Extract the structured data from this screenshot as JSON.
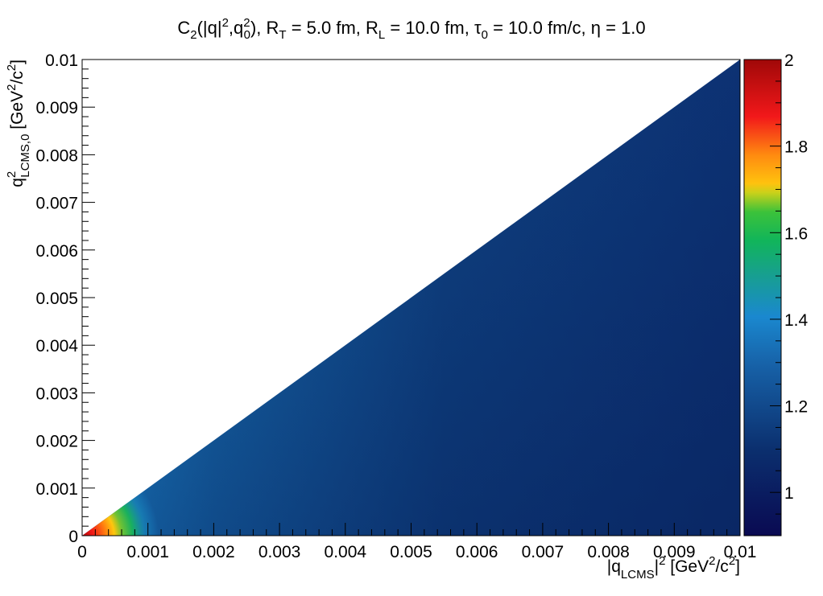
{
  "chart_data": {
    "type": "heatmap",
    "title": {
      "main": "C",
      "sub2": "2",
      "p1": "(|q|",
      "sup2a": "2",
      "p2": ",q",
      "sup2b": "2",
      "sub0": "0",
      "p3": "), R",
      "subT": "T",
      "p4": " = 5.0 fm, R",
      "subL": "L",
      "p5": " = 10.0 fm, ",
      "tau": "τ",
      "subTau": "0",
      "p6": " = 10.0 fm/c, η = 1.0"
    },
    "xlabel": {
      "a": "|q",
      "sub": "LCMS",
      "b": "|",
      "sup": "2",
      "c": " [GeV",
      "sup2": "2",
      "d": "/c",
      "sup3": "2",
      "e": "]"
    },
    "ylabel": {
      "a": "q",
      "sup": "2",
      "sub": "LCMS,0",
      "b": " [GeV",
      "sup2": "2",
      "c": "/c",
      "sup3": "2",
      "d": "]"
    },
    "xlim": [
      0,
      0.01
    ],
    "ylim": [
      0,
      0.01
    ],
    "x_ticks": [
      "0",
      "0.001",
      "0.002",
      "0.003",
      "0.004",
      "0.005",
      "0.006",
      "0.007",
      "0.008",
      "0.009",
      "0.01"
    ],
    "y_ticks": [
      "0",
      "0.001",
      "0.002",
      "0.003",
      "0.004",
      "0.005",
      "0.006",
      "0.007",
      "0.008",
      "0.009",
      "0.01"
    ],
    "colorbar": {
      "range": [
        0.9,
        2.0
      ],
      "ticks": [
        "1",
        "1.2",
        "1.4",
        "1.6",
        "1.8",
        "2"
      ]
    },
    "region": "filled only where q0^2 <= |q|^2 (lower-right triangle)",
    "samples": [
      {
        "q2": 0.0002,
        "q02": 0.0001,
        "C2": 1.95
      },
      {
        "q2": 0.0006,
        "q02": 0.0005,
        "C2": 1.6
      },
      {
        "q2": 0.0008,
        "q02": 0.0006,
        "C2": 1.45
      },
      {
        "q2": 0.001,
        "q02": 0.0009,
        "C2": 1.45
      },
      {
        "q2": 0.001,
        "q02": 0.0002,
        "C2": 1.25
      },
      {
        "q2": 0.003,
        "q02": 0.0028,
        "C2": 1.25
      },
      {
        "q2": 0.005,
        "q02": 0.0045,
        "C2": 1.15
      },
      {
        "q2": 0.005,
        "q02": 0.0005,
        "C2": 1.02
      },
      {
        "q2": 0.01,
        "q02": 0.01,
        "C2": 1.1
      },
      {
        "q2": 0.01,
        "q02": 0.0,
        "C2": 1.0
      }
    ]
  }
}
